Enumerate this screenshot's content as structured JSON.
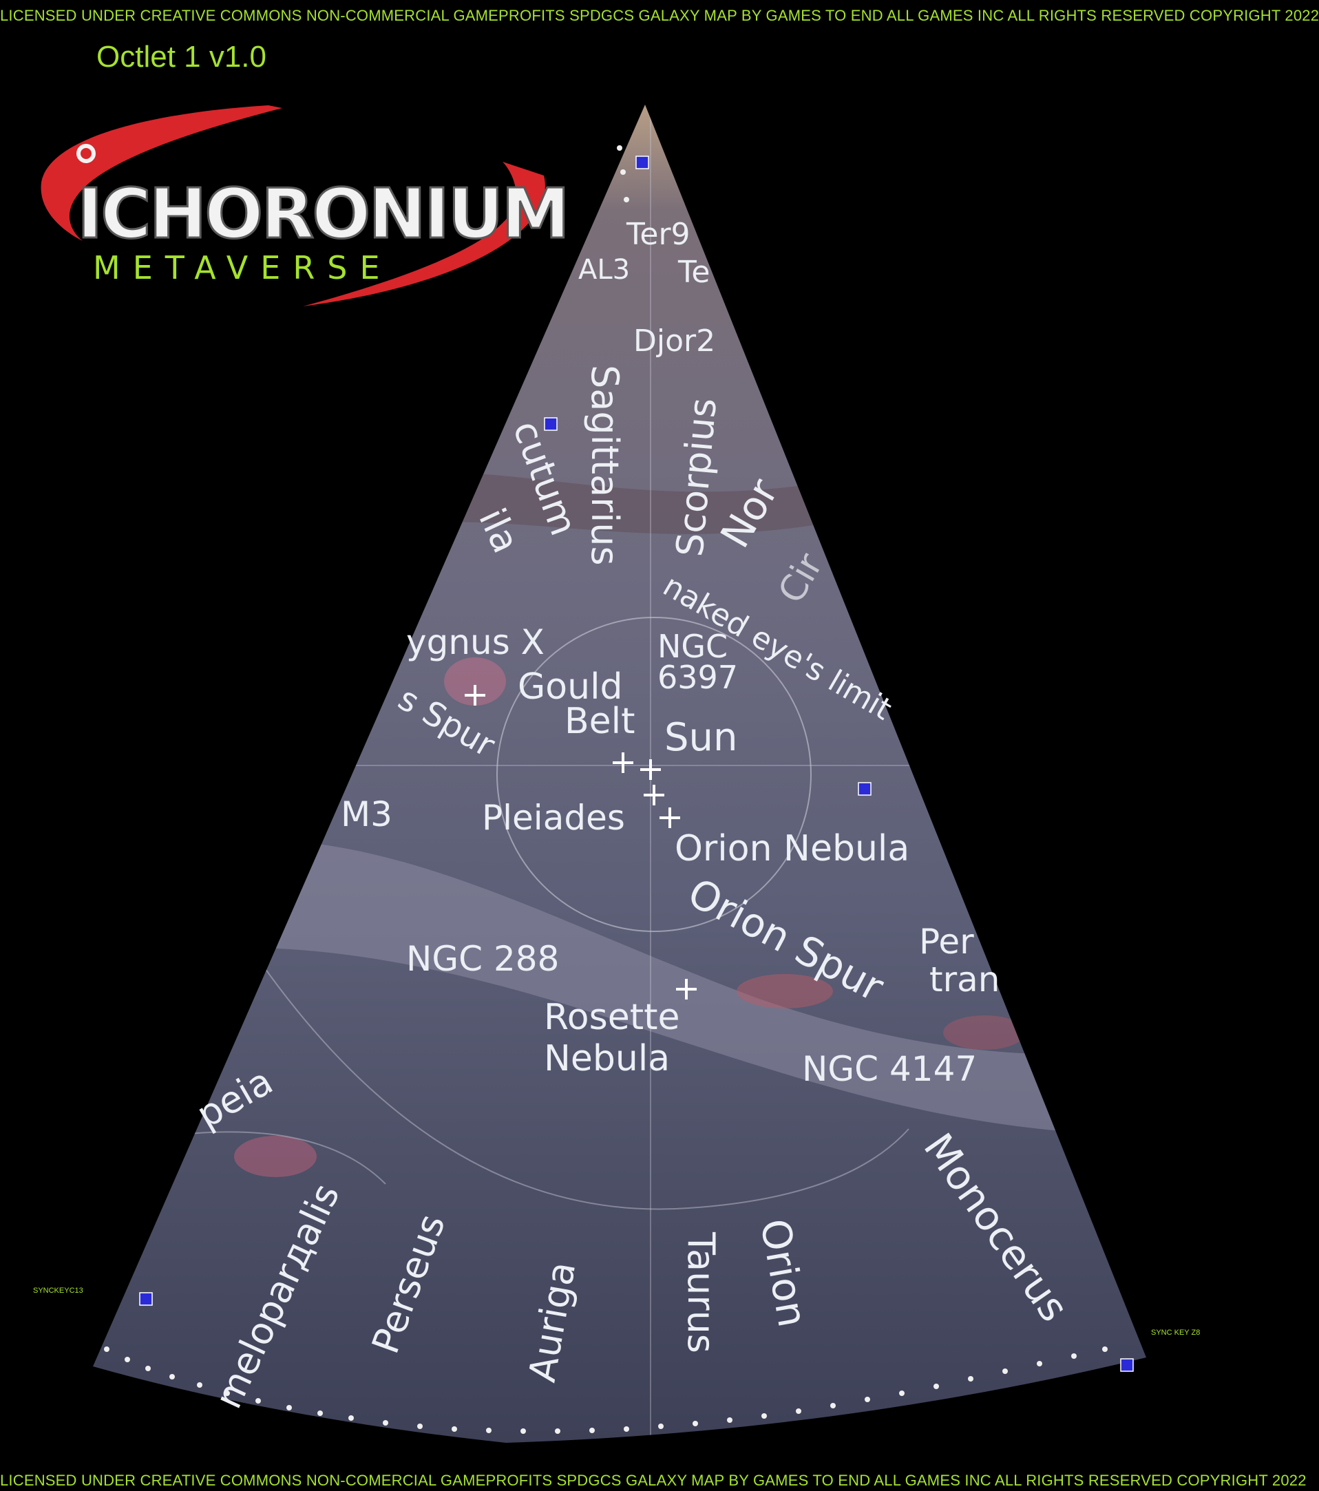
{
  "license_top": "LICENSED UNDER CREATIVE COMMONS NON-COMMERCIAL GAMEPROFITS SPDGCS GALAXY MAP BY GAMES TO END ALL GAMES INC ALL RIGHTS RESERVED  COPYRIGHT 2022",
  "license_bottom": "LICENSED UNDER CREATIVE COMMONS NON-COMERCIAL GAMEPROFITS SPDGCS GALAXY MAP BY GAMES TO END ALL GAMES  INC ALL RIGHTS RESERVED  COPYRIGHT 2022",
  "version": "Octlet 1 v1.0",
  "logo": {
    "word": "ICHORONIUM",
    "sub": "METAVERSE",
    "colors": {
      "swoosh": "#d8262b",
      "text": "#f2f2f2",
      "outline": "#5a5a5a",
      "sub": "#a6e22e"
    }
  },
  "sync_keys": {
    "left": "SYNCKEYC13",
    "right": "SYNC KEY Z8"
  },
  "colors": {
    "marker": "#2a2ad8",
    "accent": "#a6e22e",
    "map_bg": "#4f5266",
    "label": "#eceff4"
  },
  "map": {
    "labels": {
      "ter9": "Ter9",
      "te": "Te",
      "al3": "AL3",
      "djor2": "Djor2",
      "sagittarius": "Sagittarius",
      "scorpius": "Scorpius",
      "scutum": "cutum",
      "aquila": "ila",
      "norma": "Nor",
      "cir": "Cir",
      "naked_eye": "naked eye's limit",
      "cygnus": "ygnus X",
      "ngc6397": "NGC",
      "ngc6397b": "6397",
      "gould1": "Gould",
      "gould2": "Belt",
      "sun": "Sun",
      "spur": "s Spur",
      "m3": "M3",
      "pleiades": "Pleiades",
      "orion_nebula": "Orion Nebula",
      "orion_spur": "Orion Spur",
      "per1": "Per",
      "per2": "tran",
      "ngc288": "NGC 288",
      "rosette1": "Rosette",
      "rosette2": "Nebula",
      "ngc4147": "NGC 4147",
      "cassiopeia": "peia",
      "camelopardalis": "meloparдalis",
      "perseus": "Perseus",
      "auriga": "Auriga",
      "taurus": "Taurus",
      "orion": "Orion",
      "monocerus": "Monocerus"
    }
  }
}
